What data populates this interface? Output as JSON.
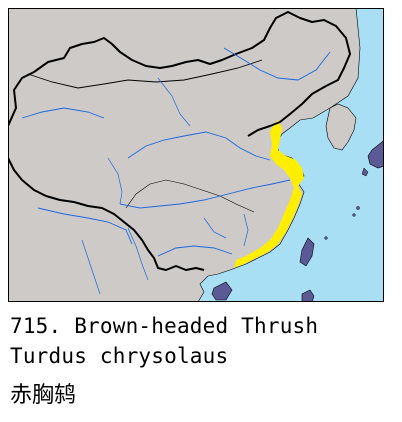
{
  "caption": {
    "number_and_name": "715. Brown-headed Thrush",
    "scientific_name": "Turdus chrysolaus",
    "chinese_name": "赤胸鸫"
  },
  "map": {
    "colors": {
      "sea": "#a8dff5",
      "land": "#cdcac7",
      "range": "#ffee00",
      "islands": "#5c5a96",
      "river": "#1c66e0",
      "border": "#000000"
    }
  }
}
